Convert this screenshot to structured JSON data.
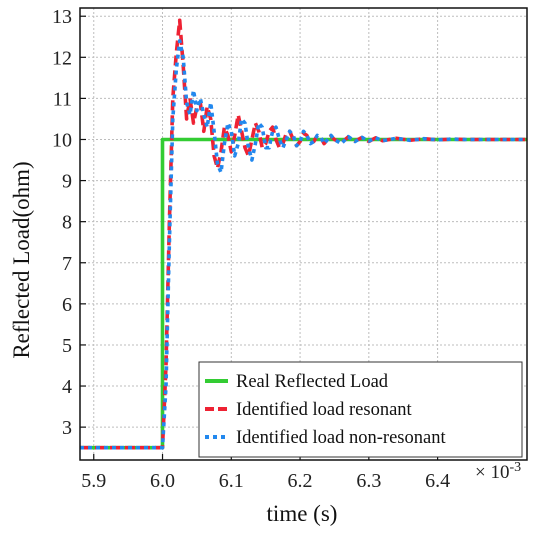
{
  "chart_data": {
    "type": "line",
    "title": "",
    "xlabel": "time (s)",
    "ylabel": "Reflected Load(ohm)",
    "x_multiplier_label": "× 10",
    "x_multiplier_exp": "-3",
    "xlim": [
      5.88,
      6.53
    ],
    "ylim": [
      2.2,
      13.2
    ],
    "x_ticks": [
      "5.9",
      "6.0",
      "6.1",
      "6.2",
      "6.3",
      "6.4"
    ],
    "x_tick_values": [
      5.9,
      6.0,
      6.1,
      6.2,
      6.3,
      6.4
    ],
    "y_ticks": [
      "3",
      "4",
      "5",
      "6",
      "7",
      "8",
      "9",
      "10",
      "11",
      "12",
      "13"
    ],
    "y_tick_values": [
      3,
      4,
      5,
      6,
      7,
      8,
      9,
      10,
      11,
      12,
      13
    ],
    "grid": true,
    "legend_position": "bottom-right",
    "series": [
      {
        "name": "Real Reflected Load",
        "color": "#33cc33",
        "style": "solid",
        "x": [
          5.88,
          6.0,
          6.0,
          6.53
        ],
        "y": [
          2.5,
          2.5,
          10.0,
          10.0
        ]
      },
      {
        "name": "Identified load resonant",
        "color": "#ee2233",
        "style": "dashed",
        "x": [
          5.88,
          6.0,
          6.005,
          6.01,
          6.015,
          6.02,
          6.025,
          6.03,
          6.035,
          6.04,
          6.045,
          6.05,
          6.055,
          6.06,
          6.065,
          6.07,
          6.075,
          6.08,
          6.085,
          6.09,
          6.095,
          6.1,
          6.105,
          6.11,
          6.115,
          6.12,
          6.125,
          6.13,
          6.135,
          6.14,
          6.145,
          6.15,
          6.155,
          6.16,
          6.165,
          6.17,
          6.175,
          6.18,
          6.185,
          6.19,
          6.195,
          6.2,
          6.205,
          6.21,
          6.215,
          6.22,
          6.225,
          6.23,
          6.235,
          6.24,
          6.245,
          6.25,
          6.26,
          6.27,
          6.28,
          6.29,
          6.3,
          6.31,
          6.32,
          6.34,
          6.36,
          6.38,
          6.4,
          6.42,
          6.44,
          6.46,
          6.48,
          6.5,
          6.53
        ],
        "y": [
          2.5,
          2.5,
          4.5,
          8.0,
          11.0,
          12.1,
          12.9,
          11.8,
          10.5,
          11.0,
          10.4,
          10.8,
          10.9,
          10.2,
          10.8,
          10.5,
          9.6,
          9.3,
          9.7,
          10.3,
          10.1,
          9.7,
          10.1,
          10.6,
          10.2,
          9.8,
          9.6,
          10.0,
          10.4,
          10.2,
          9.8,
          9.9,
          10.2,
          10.3,
          10.0,
          9.8,
          9.9,
          10.15,
          10.2,
          10.0,
          9.85,
          9.95,
          10.15,
          10.1,
          9.9,
          9.95,
          10.1,
          10.05,
          9.9,
          10.0,
          10.08,
          10.0,
          9.92,
          10.06,
          9.96,
          10.05,
          9.95,
          10.04,
          9.97,
          10.03,
          9.98,
          10.02,
          9.99,
          10.01,
          10.0,
          10.0,
          10.0,
          10.0,
          10.0
        ]
      },
      {
        "name": "Identified load non-resonant",
        "color": "#2288ee",
        "style": "dotted",
        "x": [
          5.88,
          6.0,
          6.005,
          6.01,
          6.015,
          6.02,
          6.025,
          6.03,
          6.035,
          6.04,
          6.045,
          6.05,
          6.055,
          6.06,
          6.065,
          6.07,
          6.075,
          6.08,
          6.085,
          6.09,
          6.095,
          6.1,
          6.105,
          6.11,
          6.115,
          6.12,
          6.125,
          6.13,
          6.135,
          6.14,
          6.145,
          6.15,
          6.155,
          6.16,
          6.165,
          6.17,
          6.175,
          6.18,
          6.185,
          6.19,
          6.195,
          6.2,
          6.205,
          6.21,
          6.215,
          6.22,
          6.225,
          6.23,
          6.235,
          6.24,
          6.245,
          6.25,
          6.26,
          6.27,
          6.28,
          6.29,
          6.3,
          6.31,
          6.32,
          6.34,
          6.36,
          6.38,
          6.4,
          6.42,
          6.44,
          6.46,
          6.48,
          6.5,
          6.53
        ],
        "y": [
          2.5,
          2.5,
          4.0,
          7.5,
          10.5,
          11.7,
          12.4,
          12.0,
          10.9,
          10.6,
          11.2,
          10.7,
          11.0,
          10.6,
          10.3,
          10.9,
          10.2,
          9.4,
          9.2,
          9.9,
          10.4,
          10.2,
          9.6,
          9.9,
          10.5,
          10.4,
          9.8,
          9.5,
          9.9,
          10.4,
          10.3,
          9.8,
          9.8,
          10.2,
          10.3,
          10.0,
          9.8,
          10.0,
          10.2,
          10.1,
          9.85,
          9.95,
          10.2,
          10.1,
          9.9,
          9.95,
          10.1,
          10.05,
          9.9,
          10.0,
          10.1,
          10.0,
          9.9,
          10.07,
          9.95,
          10.05,
          9.96,
          10.04,
          9.97,
          10.03,
          9.98,
          10.02,
          9.99,
          10.01,
          10.0,
          10.0,
          10.0,
          10.0,
          10.0
        ]
      }
    ]
  }
}
